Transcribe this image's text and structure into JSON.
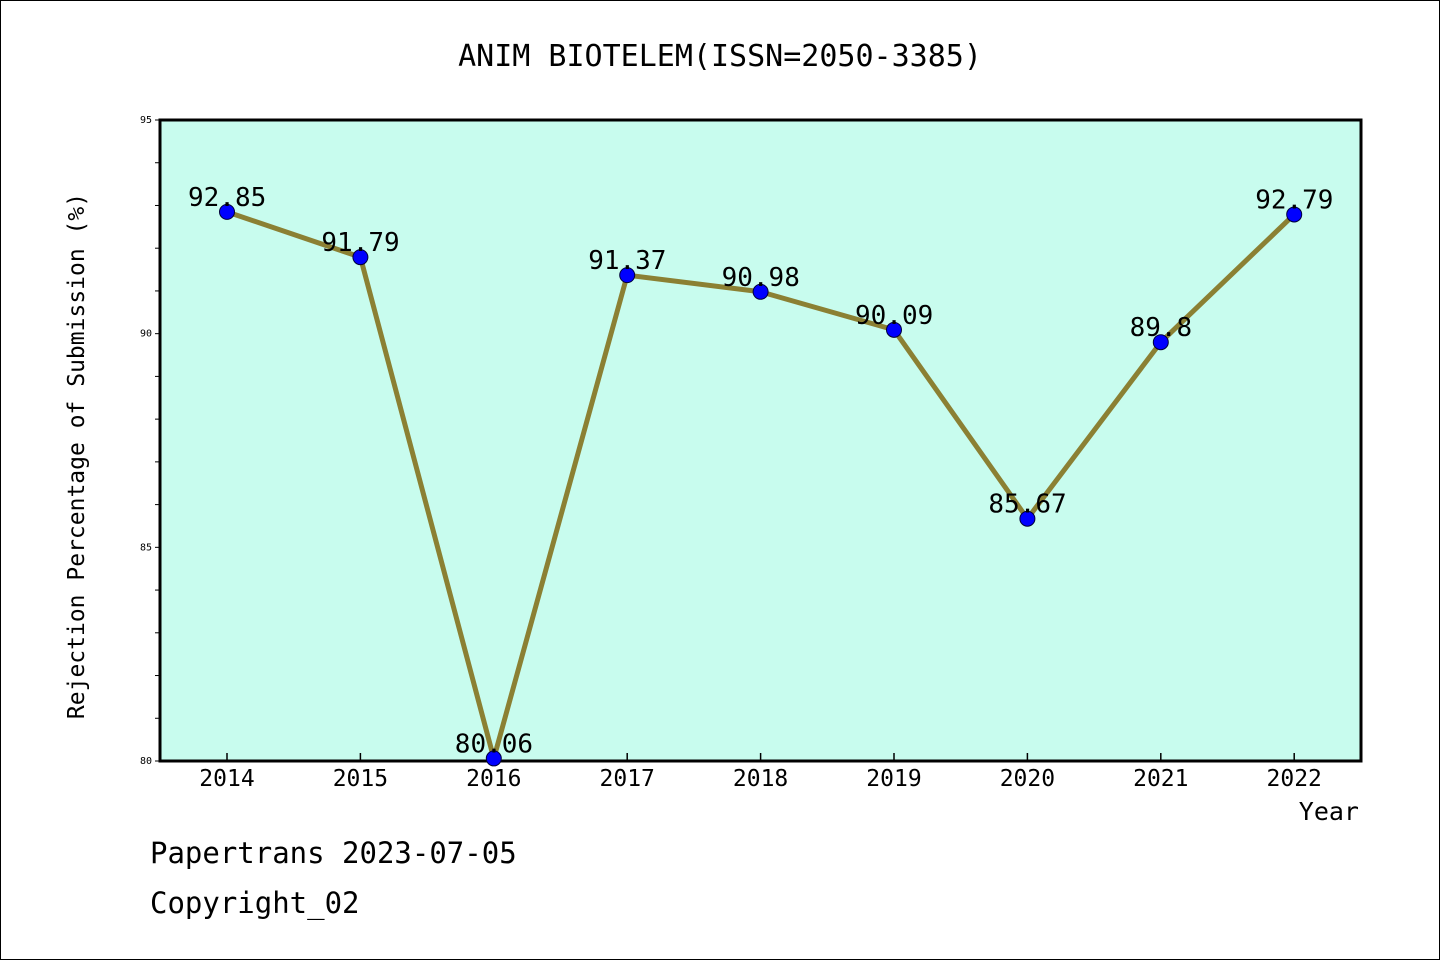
{
  "chart_data": {
    "type": "line",
    "title": "ANIM BIOTELEM(ISSN=2050-3385)",
    "xlabel": "Year",
    "ylabel": "Rejection Percentage of Submission (%)",
    "categories": [
      "2014",
      "2015",
      "2016",
      "2017",
      "2018",
      "2019",
      "2020",
      "2021",
      "2022"
    ],
    "values": [
      92.85,
      91.79,
      80.06,
      91.37,
      90.98,
      90.09,
      85.67,
      89.8,
      92.79
    ],
    "data_labels": [
      "92.85",
      "91.79",
      "80.06",
      "91.37",
      "90.98",
      "90.09",
      "85.67",
      "89.8",
      "92.79"
    ],
    "ylim": [
      80,
      95
    ],
    "yticks": [
      80,
      85,
      90,
      95
    ],
    "ytick_labels": [
      "80",
      "85",
      "90",
      "95"
    ],
    "grid": false,
    "legend": "none",
    "colors": {
      "plot_background": "#c8fcee",
      "line": "#8b8033",
      "marker": "#0000ff",
      "axis": "#000000"
    }
  },
  "footer": {
    "line1": "Papertrans 2023-07-05",
    "line2": "Copyright_02"
  }
}
